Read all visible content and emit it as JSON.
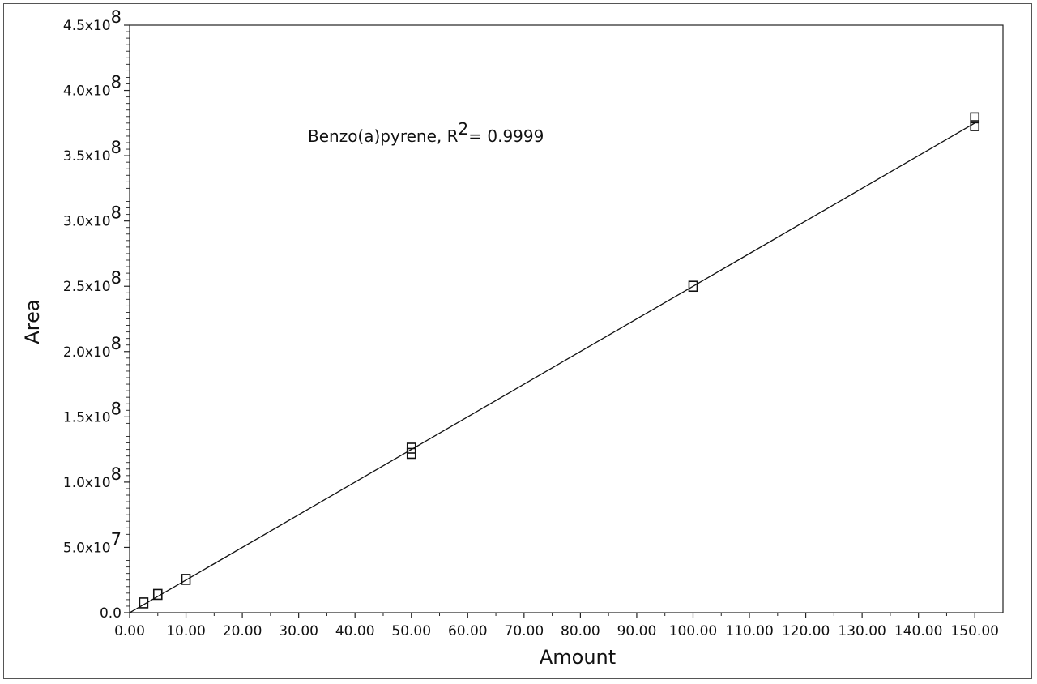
{
  "chart_data": {
    "type": "scatter",
    "xlabel": "Amount",
    "ylabel": "Area",
    "xlim": [
      0,
      155
    ],
    "ylim": [
      0,
      450000000
    ],
    "x_ticks": [
      "0.00",
      "10.00",
      "20.00",
      "30.00",
      "40.00",
      "50.00",
      "60.00",
      "70.00",
      "80.00",
      "90.00",
      "100.00",
      "110.00",
      "120.00",
      "130.00",
      "140.00",
      "150.00"
    ],
    "y_ticks": [
      {
        "mantissa": "0.0",
        "exponent": ""
      },
      {
        "mantissa": "5.0x10",
        "exponent": "7"
      },
      {
        "mantissa": "1.0x10",
        "exponent": "8"
      },
      {
        "mantissa": "1.5x10",
        "exponent": "8"
      },
      {
        "mantissa": "2.0x10",
        "exponent": "8"
      },
      {
        "mantissa": "2.5x10",
        "exponent": "8"
      },
      {
        "mantissa": "3.0x10",
        "exponent": "8"
      },
      {
        "mantissa": "3.5x10",
        "exponent": "8"
      },
      {
        "mantissa": "4.0x10",
        "exponent": "8"
      },
      {
        "mantissa": "4.5x10",
        "exponent": "8"
      }
    ],
    "annotation": {
      "prefix": "Benzo(a)pyrene, R",
      "superscript": "2",
      "suffix": "= 0.9999"
    },
    "series": [
      {
        "marker": "open-square",
        "points": [
          {
            "x": 2.5,
            "y": 7500000
          },
          {
            "x": 5.0,
            "y": 14000000
          },
          {
            "x": 10.0,
            "y": 25500000
          },
          {
            "x": 50.0,
            "y": 122000000
          },
          {
            "x": 50.0,
            "y": 126000000
          },
          {
            "x": 100.0,
            "y": 250000000
          },
          {
            "x": 150.0,
            "y": 373000000
          },
          {
            "x": 150.0,
            "y": 379000000
          }
        ]
      }
    ],
    "fit_line": {
      "from": {
        "x": 0,
        "y": 0
      },
      "to": {
        "x": 150,
        "y": 375000000
      }
    },
    "grid": false
  }
}
